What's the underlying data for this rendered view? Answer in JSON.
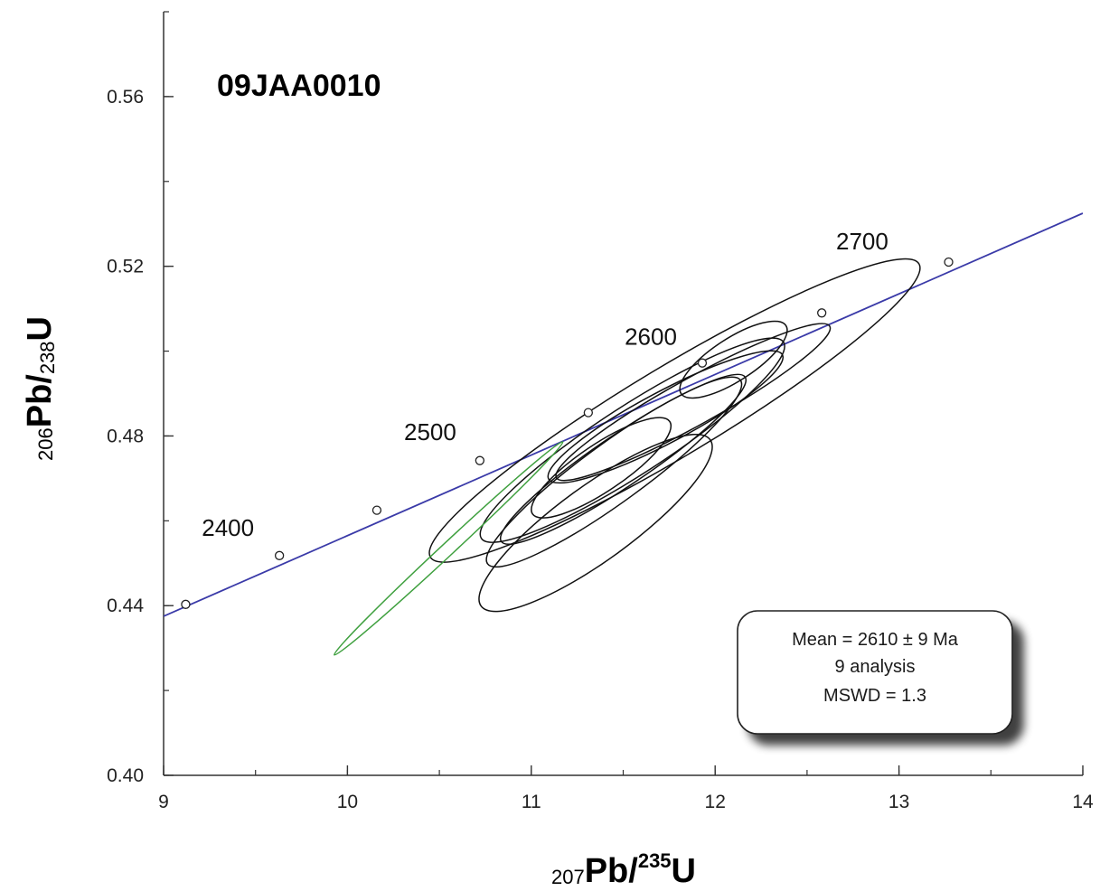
{
  "chart_data": {
    "type": "scatter",
    "title": "09JAA0010",
    "xlabel": {
      "pre": "207",
      "main": "Pb/",
      "sup": "235",
      "post": "U"
    },
    "ylabel": {
      "pre": "206",
      "main": "Pb/",
      "sub": "238",
      "post": "U"
    },
    "xlim": [
      9,
      14
    ],
    "ylim": [
      0.4,
      0.58
    ],
    "x_ticks": [
      9,
      10,
      11,
      12,
      13,
      14
    ],
    "y_ticks": [
      0.4,
      0.44,
      0.48,
      0.52,
      0.56
    ],
    "x_minor_step": 0.5,
    "y_minor_step": 0.02,
    "concordia": {
      "color": "#3a3aa8",
      "line_x": [
        9.0,
        14.0
      ],
      "line_y": [
        0.4375,
        0.5325
      ],
      "markers": [
        {
          "x": 9.12,
          "y": 0.4403
        },
        {
          "x": 9.63,
          "y": 0.4518
        },
        {
          "x": 10.16,
          "y": 0.4625
        },
        {
          "x": 10.72,
          "y": 0.4742
        },
        {
          "x": 11.31,
          "y": 0.4855
        },
        {
          "x": 11.93,
          "y": 0.4972
        },
        {
          "x": 12.58,
          "y": 0.509
        },
        {
          "x": 13.27,
          "y": 0.521
        }
      ],
      "age_labels": [
        {
          "text": "2400",
          "x": 9.35,
          "y": 0.4565
        },
        {
          "text": "2500",
          "x": 10.45,
          "y": 0.479
        },
        {
          "text": "2600",
          "x": 11.65,
          "y": 0.5015
        },
        {
          "text": "2700",
          "x": 12.8,
          "y": 0.524
        }
      ]
    },
    "ellipses": [
      {
        "cx": 11.78,
        "cy": 0.486,
        "rx": 1.55,
        "ry": 0.0105,
        "angle": 31,
        "color": "#111111"
      },
      {
        "cx": 11.55,
        "cy": 0.479,
        "rx": 0.98,
        "ry": 0.008,
        "angle": 33,
        "color": "#111111"
      },
      {
        "cx": 11.88,
        "cy": 0.488,
        "rx": 0.85,
        "ry": 0.0055,
        "angle": 29,
        "color": "#111111"
      },
      {
        "cx": 11.5,
        "cy": 0.4745,
        "rx": 0.8,
        "ry": 0.006,
        "angle": 34,
        "color": "#111111"
      },
      {
        "cx": 11.45,
        "cy": 0.4715,
        "rx": 0.85,
        "ry": 0.007,
        "angle": 36,
        "color": "#111111"
      },
      {
        "cx": 11.38,
        "cy": 0.4725,
        "rx": 0.45,
        "ry": 0.0055,
        "angle": 34,
        "color": "#111111"
      },
      {
        "cx": 11.73,
        "cy": 0.4845,
        "rx": 0.72,
        "ry": 0.006,
        "angle": 28,
        "color": "#111111"
      },
      {
        "cx": 12.1,
        "cy": 0.498,
        "rx": 0.34,
        "ry": 0.005,
        "angle": 33,
        "color": "#111111"
      },
      {
        "cx": 11.35,
        "cy": 0.4595,
        "rx": 0.77,
        "ry": 0.0088,
        "angle": 36,
        "color": "#111111"
      },
      {
        "cx": 10.55,
        "cy": 0.4535,
        "rx": 0.85,
        "ry": 0.0015,
        "angle": 43,
        "color": "#3fa03f"
      }
    ],
    "stats_box": {
      "lines": [
        "Mean = 2610 ± 9  Ma",
        "9 analysis",
        "MSWD = 1.3"
      ],
      "text_color": "#1a1a1a"
    }
  }
}
